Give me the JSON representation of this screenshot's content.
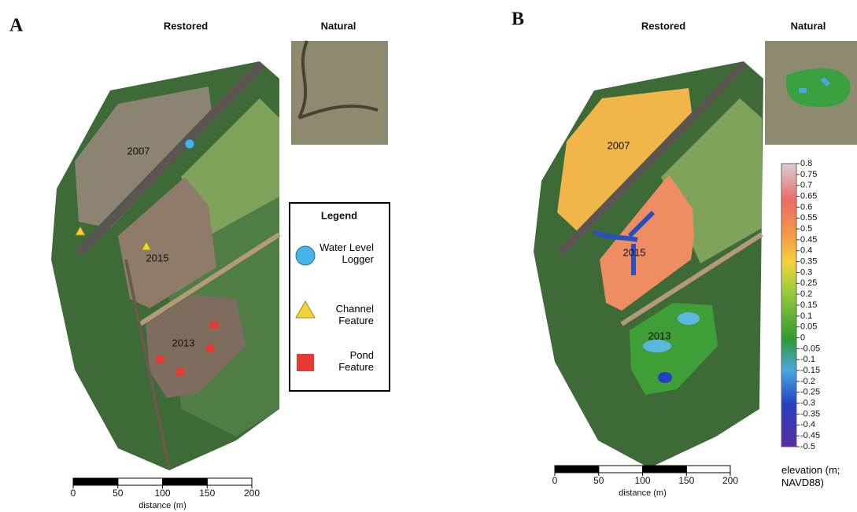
{
  "panels": [
    {
      "label": "A",
      "titles": [
        "Restored",
        "Natural"
      ],
      "site_labels": [
        "2007",
        "2015",
        "2013"
      ],
      "legend": {
        "title": "Legend",
        "items": [
          "Water Level Logger",
          "Channel Feature",
          "Pond Feature"
        ]
      },
      "scale_bar": {
        "ticks": [
          0,
          50,
          100,
          150,
          200
        ],
        "label": "distance (m)"
      }
    },
    {
      "label": "B",
      "titles": [
        "Restored",
        "Natural"
      ],
      "site_labels": [
        "2007",
        "2015",
        "2013"
      ],
      "scale_bar": {
        "ticks": [
          0,
          50,
          100,
          150,
          200
        ],
        "label": "distance (m)"
      },
      "colorbar": {
        "lim": [
          -0.5,
          0.8
        ],
        "ticks": [
          0.8,
          0.75,
          0.7,
          0.65,
          0.6,
          0.55,
          0.5,
          0.45,
          0.4,
          0.35,
          0.3,
          0.25,
          0.2,
          0.15,
          0.1,
          0.05,
          0,
          -0.05,
          -0.1,
          -0.15,
          -0.2,
          -0.25,
          -0.3,
          -0.35,
          -0.4,
          -0.45,
          -0.5
        ],
        "label": "elevation (m; NAVD88)"
      }
    }
  ]
}
